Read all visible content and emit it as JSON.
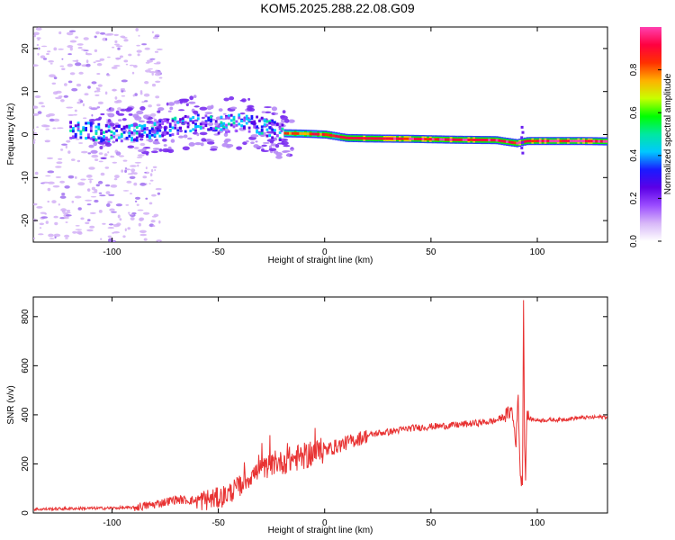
{
  "title": "KOM5.2025.288.22.08.G09",
  "chart_data": [
    {
      "type": "heatmap",
      "title": "KOM5.2025.288.22.08.G09",
      "xlabel": "Height of straight line (km)",
      "ylabel": "Frequency (Hz)",
      "xlim": [
        -137,
        133
      ],
      "ylim": [
        -25,
        25
      ],
      "x_ticks": [
        -100,
        -50,
        0,
        50,
        100
      ],
      "y_ticks": [
        -20,
        -10,
        0,
        10,
        20
      ],
      "colorbar": {
        "label": "Normalized spectral amplitude",
        "ticks": [
          0.0,
          0.2,
          0.4,
          0.6,
          0.8
        ],
        "range": [
          0,
          1
        ],
        "colormap": [
          "#ffffff",
          "#d8b8f8",
          "#9b4dff",
          "#5b00e6",
          "#1a1aff",
          "#00c8ff",
          "#00e8a0",
          "#00ff00",
          "#c8ff00",
          "#ffb000",
          "#ff3000",
          "#ff0040",
          "#ff40b0"
        ]
      },
      "ridge": {
        "x": [
          -137,
          -120,
          -100,
          -85,
          -70,
          -60,
          -50,
          -40,
          -30,
          -20,
          -10,
          0,
          10,
          20,
          40,
          60,
          80,
          90,
          95,
          100,
          110,
          120,
          133
        ],
        "y": [
          1.0,
          1.0,
          0.2,
          0.5,
          2.0,
          3.0,
          2.3,
          2.8,
          2.0,
          0.3,
          0.2,
          0.0,
          -0.8,
          -0.9,
          -1.0,
          -1.2,
          -1.3,
          -2.0,
          -1.5,
          -1.5,
          -1.5,
          -1.5,
          -1.6
        ]
      }
    },
    {
      "type": "line",
      "xlabel": "Height of straight line (km)",
      "ylabel": "SNR (v/v)",
      "xlim": [
        -137,
        133
      ],
      "ylim": [
        0,
        880
      ],
      "x_ticks": [
        -100,
        -50,
        0,
        50,
        100
      ],
      "y_ticks": [
        0,
        200,
        400,
        600,
        800
      ],
      "color": "#e83232",
      "series": [
        {
          "x": [
            -137,
            -120,
            -100,
            -90,
            -80,
            -70,
            -60,
            -50,
            -45,
            -40,
            -35,
            -30,
            -25,
            -20,
            -15,
            -10,
            -5,
            0,
            5,
            10,
            15,
            20,
            25,
            30,
            40,
            50,
            60,
            70,
            80,
            85,
            88,
            90,
            91,
            92,
            93,
            93.5,
            94,
            94.5,
            95,
            96,
            100,
            110,
            120,
            133
          ],
          "y": [
            15,
            18,
            20,
            22,
            35,
            55,
            50,
            60,
            80,
            110,
            150,
            175,
            195,
            210,
            220,
            230,
            245,
            255,
            270,
            285,
            300,
            315,
            325,
            330,
            345,
            352,
            357,
            365,
            375,
            395,
            420,
            290,
            480,
            150,
            120,
            870,
            300,
            130,
            400,
            385,
            378,
            380,
            388,
            392
          ]
        }
      ]
    }
  ]
}
